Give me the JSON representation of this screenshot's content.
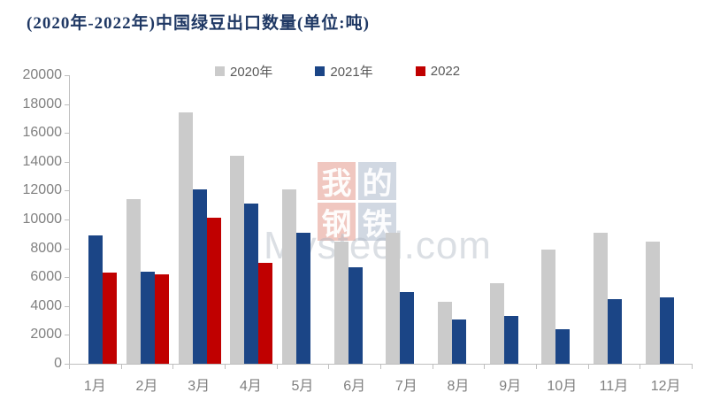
{
  "chart_data": {
    "type": "bar",
    "title": "(2020年-2022年)中国绿豆出口数量(单位:吨)",
    "categories": [
      "1月",
      "2月",
      "3月",
      "4月",
      "5月",
      "6月",
      "7月",
      "8月",
      "9月",
      "10月",
      "11月",
      "12月"
    ],
    "series": [
      {
        "name": "2020年",
        "color": "#CBCBCB",
        "values": [
          null,
          11400,
          17400,
          14400,
          12100,
          8500,
          9100,
          4300,
          5600,
          7900,
          9100,
          8500
        ]
      },
      {
        "name": "2021年",
        "color": "#1B4586",
        "values": [
          8900,
          6400,
          12100,
          11100,
          9100,
          6700,
          5000,
          3100,
          3300,
          2400,
          4500,
          4600
        ]
      },
      {
        "name": "2022",
        "color": "#C00000",
        "values": [
          6300,
          6200,
          10100,
          7000,
          null,
          null,
          null,
          null,
          null,
          null,
          null,
          null
        ]
      }
    ],
    "ylim": [
      0,
      20000
    ],
    "yticks": [
      0,
      2000,
      4000,
      6000,
      8000,
      10000,
      12000,
      14000,
      16000,
      18000,
      20000
    ],
    "grid": false,
    "legend_position": "top",
    "xlabel": "",
    "ylabel": ""
  },
  "colors": {
    "title": "#1F3864",
    "axis": "#BFBFBF",
    "tick_label": "#808080",
    "legend_label": "#595959"
  },
  "watermark": {
    "blocks": [
      {
        "char": "我",
        "color": "#D6604D"
      },
      {
        "char": "的",
        "color": "#7D91AF"
      },
      {
        "char": "钢",
        "color": "#D6604D"
      },
      {
        "char": "铁",
        "color": "#7D91AF"
      }
    ],
    "text": "Mysteel.com"
  }
}
